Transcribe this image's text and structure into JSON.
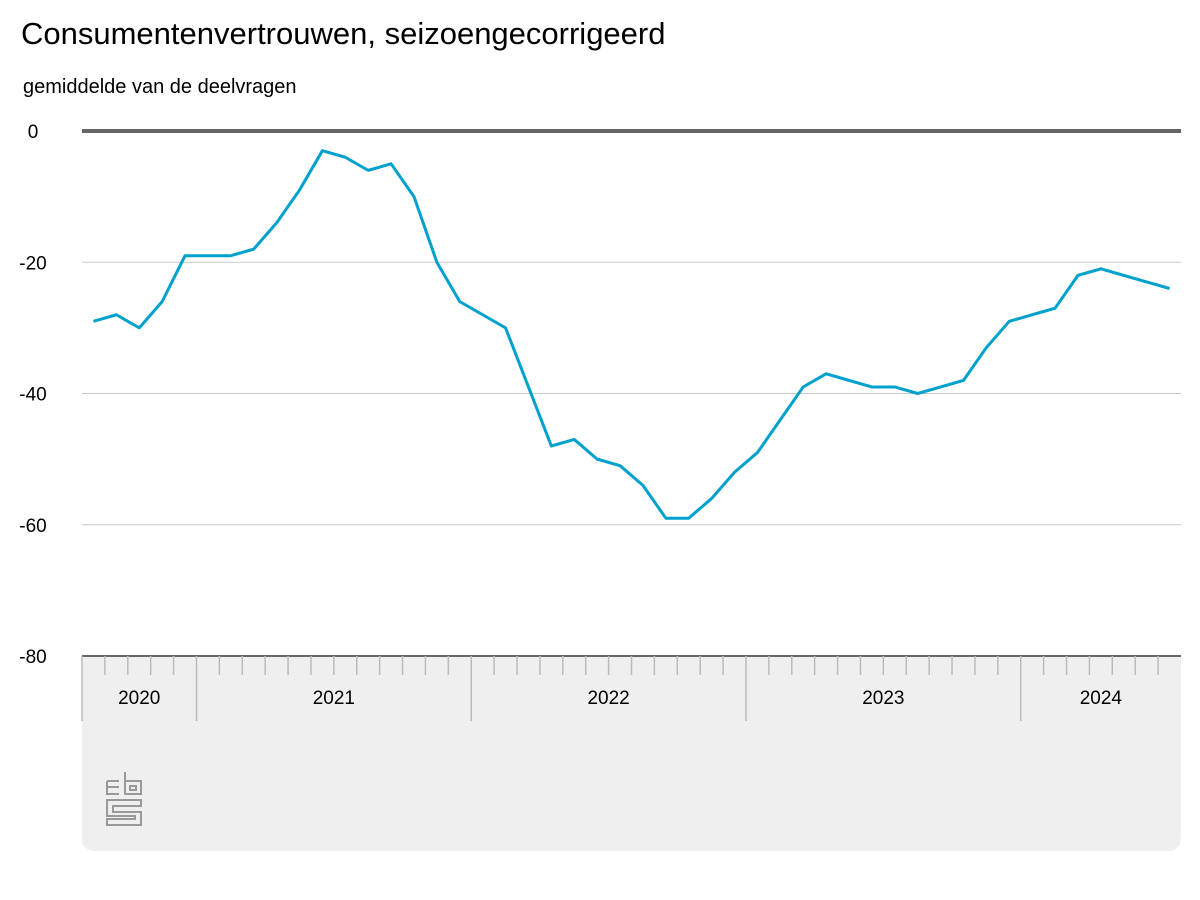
{
  "chart_data": {
    "type": "line",
    "title": "Consumentenvertrouwen, seizoengecorrigeerd",
    "subtitle": "gemiddelde van de deelvragen",
    "ylim": [
      -80,
      0
    ],
    "yticks": [
      "0",
      "-20",
      "-40",
      "-60",
      "-80"
    ],
    "ytick_values": [
      0,
      -20,
      -40,
      -60,
      -80
    ],
    "grid": true,
    "x_start": "2020-08",
    "x_end": "2024-07",
    "year_labels": [
      {
        "label": "2020",
        "months": 5
      },
      {
        "label": "2021",
        "months": 12
      },
      {
        "label": "2022",
        "months": 12
      },
      {
        "label": "2023",
        "months": 12
      },
      {
        "label": "2024",
        "months": 7
      }
    ],
    "series": [
      {
        "color": "#00a1cd",
        "values": [
          -29,
          -28,
          -30,
          -26,
          -19,
          -19,
          -19,
          -18,
          -14,
          -9,
          -3,
          -4,
          -6,
          -5,
          -10,
          -20,
          -26,
          -28,
          -30,
          -39,
          -48,
          -47,
          -50,
          -51,
          -54,
          -59,
          -59,
          -56,
          -52,
          -49,
          -44,
          -39,
          -37,
          -38,
          -39,
          -39,
          -40,
          -39,
          -38,
          -33,
          -29,
          -28,
          -27,
          -22,
          -21,
          -22,
          -23,
          -24
        ]
      }
    ],
    "logo": "cbs"
  }
}
